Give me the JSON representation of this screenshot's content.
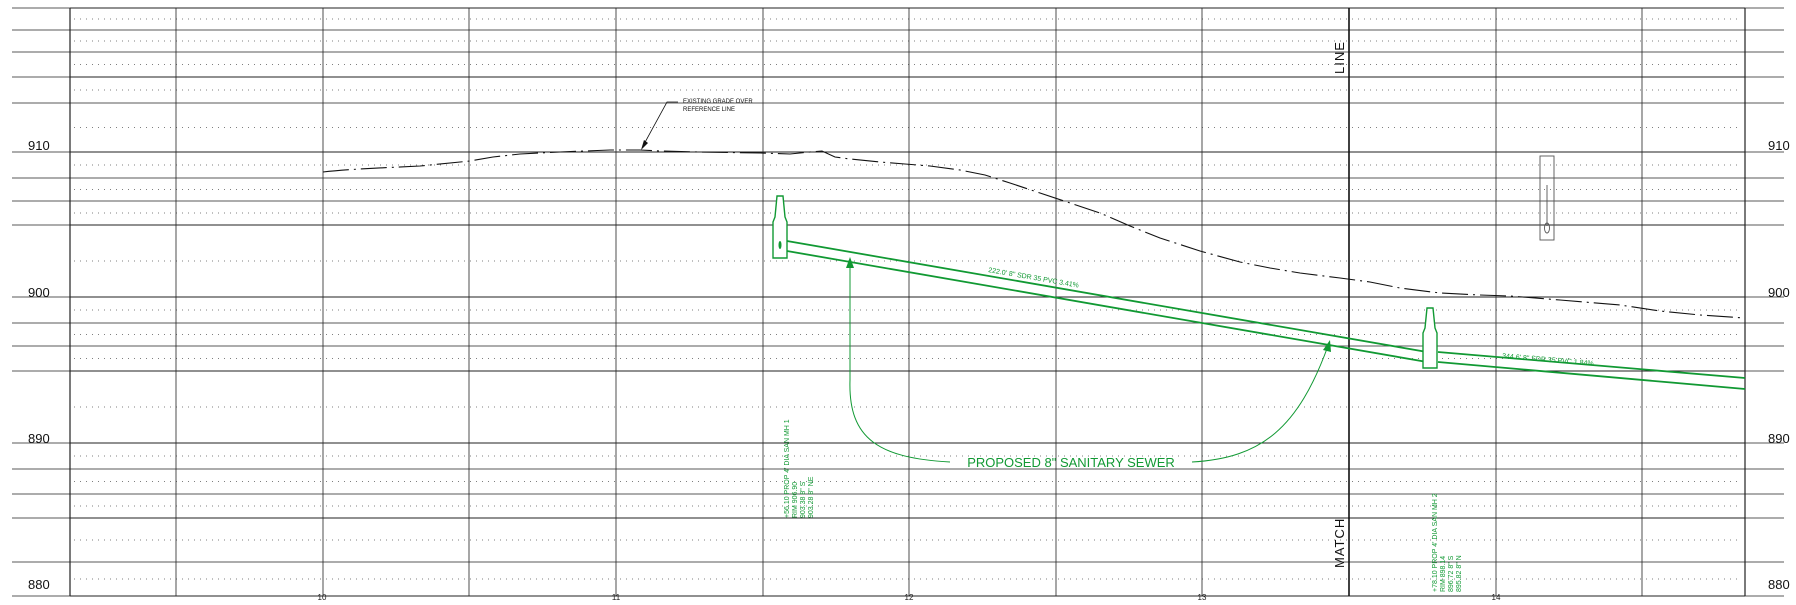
{
  "profile": {
    "elevation_labels": [
      "910",
      "900",
      "890",
      "880"
    ],
    "station_labels": [
      "10",
      "11",
      "12",
      "13",
      "14"
    ],
    "match_line": {
      "top_text": "LINE",
      "bottom_text": "MATCH"
    },
    "existing_grade_note": {
      "line1": "EXISTING GRADE OVER",
      "line2": "REFERENCE LINE"
    },
    "pipes": [
      {
        "label": "222.0' 8\" SDR 35 PVC 3.41%"
      },
      {
        "label": "344.6' 8\" SDR 35 PVC 1.84%"
      }
    ],
    "sewer_callout": "PROPOSED 8\" SANITARY SEWER",
    "manholes": [
      {
        "lines": [
          "+56.10 PROP 4' DIA SAN MH 1",
          "RIM 906.90",
          "903.38 8\" S",
          "903.28 8\" NE"
        ]
      },
      {
        "lines": [
          "+78.10 PROP 4' DIA SAN MH 2",
          "RIM 898.14",
          "896.72 8\" S",
          "895.82 8\" N"
        ]
      }
    ],
    "colors": {
      "proposed": "#119933",
      "grid": "#222222",
      "existing": "#111111"
    }
  }
}
